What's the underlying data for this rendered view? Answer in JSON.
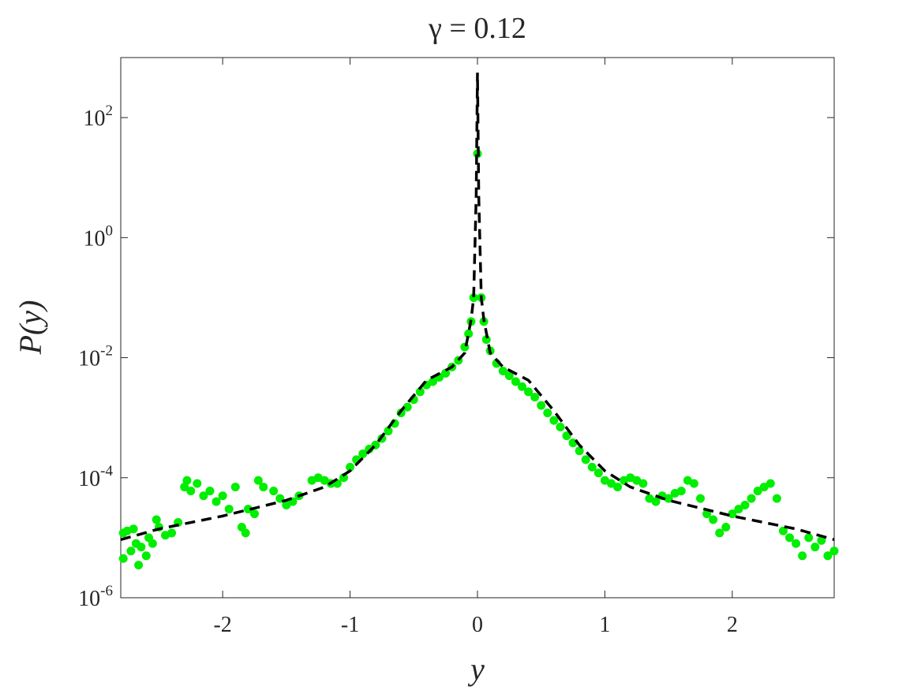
{
  "chart_data": {
    "type": "scatter",
    "title": "γ = 0.12",
    "x_label": "y",
    "y_label": "P(y)",
    "xlim": [
      -2.8,
      2.8
    ],
    "ylim": [
      1e-06,
      1000
    ],
    "log_y": true,
    "xticks": [
      -2,
      -1,
      0,
      1,
      2
    ],
    "yticks": [
      {
        "value": 1e-06,
        "label": "10",
        "exponent": "-6"
      },
      {
        "value": 0.0001,
        "label": "10",
        "exponent": "-4"
      },
      {
        "value": 0.01,
        "label": "10",
        "exponent": "-2"
      },
      {
        "value": 1,
        "label": "10",
        "exponent": "0"
      },
      {
        "value": 100,
        "label": "10",
        "exponent": "2"
      }
    ],
    "series": [
      {
        "type": "scatter",
        "color": "#00ee00",
        "x": [
          -2.78,
          -2.78,
          -2.75,
          -2.72,
          -2.7,
          -2.68,
          -2.66,
          -2.64,
          -2.6,
          -2.58,
          -2.55,
          -2.52,
          -2.5,
          -2.45,
          -2.4,
          -2.35,
          -2.3,
          -2.28,
          -2.25,
          -2.2,
          -2.15,
          -2.1,
          -2.05,
          -2.0,
          -1.95,
          -1.9,
          -1.85,
          -1.82,
          -1.8,
          -1.75,
          -1.72,
          -1.68,
          -1.6,
          -1.55,
          -1.5,
          -1.45,
          -1.4,
          -1.3,
          -1.25,
          -1.2,
          -1.15,
          -1.1,
          -1.05,
          -1.0,
          -0.95,
          -0.9,
          -0.85,
          -0.8,
          -0.75,
          -0.7,
          -0.65,
          -0.6,
          -0.55,
          -0.5,
          -0.45,
          -0.4,
          -0.35,
          -0.3,
          -0.25,
          -0.2,
          -0.15,
          -0.1,
          -0.07,
          -0.05,
          -0.03,
          0,
          0.03,
          0.05,
          0.07,
          0.1,
          0.15,
          0.2,
          0.25,
          0.3,
          0.35,
          0.4,
          0.45,
          0.5,
          0.55,
          0.6,
          0.65,
          0.7,
          0.75,
          0.8,
          0.85,
          0.9,
          0.95,
          1.0,
          1.05,
          1.1,
          1.15,
          1.2,
          1.25,
          1.3,
          1.35,
          1.4,
          1.45,
          1.5,
          1.55,
          1.6,
          1.65,
          1.7,
          1.75,
          1.8,
          1.85,
          1.9,
          1.95,
          2.0,
          2.05,
          2.1,
          2.15,
          2.2,
          2.25,
          2.3,
          2.35,
          2.4,
          2.45,
          2.5,
          2.55,
          2.6,
          2.65,
          2.7,
          2.75,
          2.8
        ],
        "values": [
          1.2e-05,
          4.5e-06,
          1.3e-05,
          6e-06,
          1.4e-05,
          8e-06,
          3.5e-06,
          7e-06,
          5e-06,
          1e-05,
          8e-06,
          2e-05,
          1.5e-05,
          1.1e-05,
          1.2e-05,
          1.8e-05,
          7e-05,
          9e-05,
          6e-05,
          8e-05,
          5e-05,
          6e-05,
          4e-05,
          5e-05,
          3e-05,
          7e-05,
          1.5e-05,
          1.2e-05,
          3e-05,
          2.5e-05,
          9e-05,
          7e-05,
          6e-05,
          4.5e-05,
          3.5e-05,
          4e-05,
          5e-05,
          9e-05,
          0.0001,
          9e-05,
          8e-05,
          8e-05,
          0.0001,
          0.00015,
          0.0002,
          0.00025,
          0.0003,
          0.00035,
          0.00045,
          0.0006,
          0.0008,
          0.0012,
          0.0015,
          0.002,
          0.0027,
          0.0035,
          0.004,
          0.0047,
          0.0055,
          0.007,
          0.009,
          0.015,
          0.025,
          0.04,
          0.1,
          25,
          0.1,
          0.04,
          0.02,
          0.013,
          0.008,
          0.006,
          0.005,
          0.004,
          0.0033,
          0.0027,
          0.0022,
          0.0016,
          0.0012,
          0.0009,
          0.0007,
          0.0005,
          0.00038,
          0.00028,
          0.0002,
          0.00015,
          0.00012,
          9e-05,
          8e-05,
          7e-05,
          9e-05,
          0.0001,
          9e-05,
          8e-05,
          4.5e-05,
          4e-05,
          5e-05,
          4.5e-05,
          5.5e-05,
          6e-05,
          9e-05,
          8e-05,
          4.5e-05,
          2.5e-05,
          2e-05,
          1.2e-05,
          1.5e-05,
          2.5e-05,
          3e-05,
          3.5e-05,
          4.5e-05,
          6e-05,
          7e-05,
          8e-05,
          4.5e-05,
          1.3e-05,
          1e-05,
          8e-06,
          5e-06,
          1e-05,
          7e-06,
          9e-06,
          5e-06,
          6e-06
        ]
      },
      {
        "type": "line",
        "color": "#000000",
        "dashed": true,
        "x": [
          -2.8,
          -2.5,
          -2,
          -1.5,
          -1.2,
          -1,
          -0.8,
          -0.6,
          -0.4,
          -0.2,
          -0.1,
          -0.05,
          -0.03,
          -0.01,
          0,
          0.01,
          0.03,
          0.05,
          0.1,
          0.2,
          0.4,
          0.6,
          0.8,
          1,
          1.2,
          1.5,
          2,
          2.5,
          2.8
        ],
        "values": [
          9.3e-06,
          1.4e-05,
          2.3e-05,
          4.2e-05,
          7e-05,
          0.00013,
          0.00035,
          0.0013,
          0.0042,
          0.007,
          0.012,
          0.043,
          0.1,
          5,
          560,
          5,
          0.1,
          0.043,
          0.012,
          0.007,
          0.0042,
          0.0013,
          0.00035,
          0.00013,
          7e-05,
          4.2e-05,
          2.3e-05,
          1.4e-05,
          9.3e-06
        ]
      }
    ]
  }
}
